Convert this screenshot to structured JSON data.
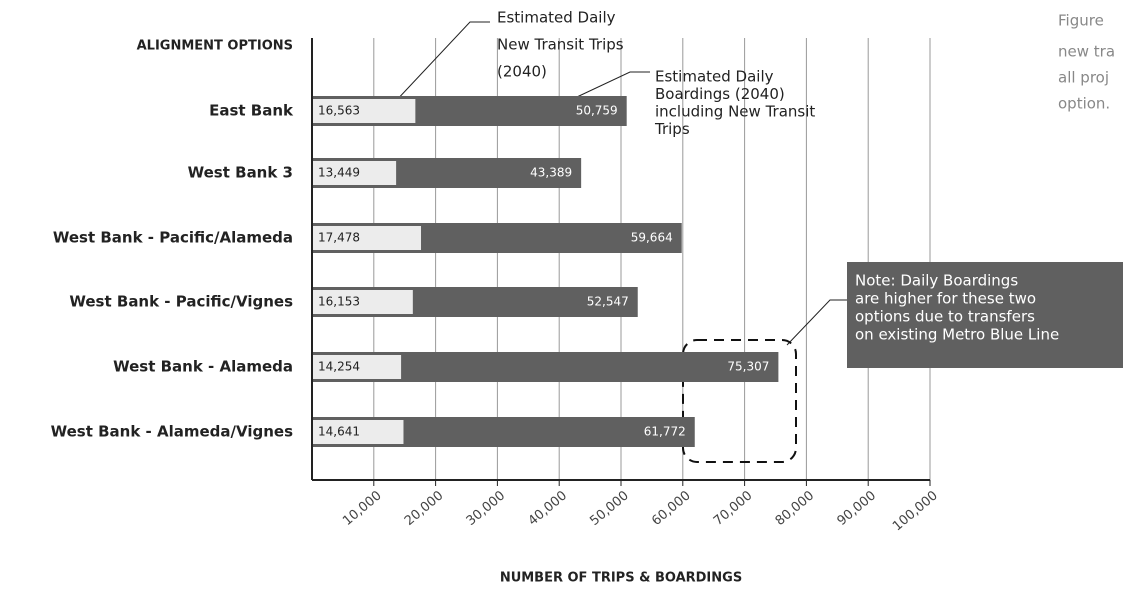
{
  "chart_data": {
    "type": "overlay_hbar",
    "title": "ALIGNMENT OPTIONS",
    "x_label": "NUMBER OF TRIPS & BOARDINGS",
    "categories": [
      "East Bank",
      "West Bank 3",
      "West Bank - Pacific/Alameda",
      "West Bank - Pacific/Vignes",
      "West Bank - Alameda",
      "West Bank - Alameda/Vignes"
    ],
    "series": [
      {
        "name": "Estimated Daily Boardings (2040) including New Transit Trips",
        "color": "#606060",
        "values": [
          50759,
          43389,
          59664,
          52547,
          75307,
          61772
        ],
        "value_labels": [
          "50,759",
          "43,389",
          "59,664",
          "52,547",
          "75,307",
          "61,772"
        ]
      },
      {
        "name": "Estimated Daily New Transit Trips (2040)",
        "color": "#ececec",
        "values": [
          16563,
          13449,
          17478,
          16153,
          14254,
          14641
        ],
        "value_labels": [
          "16,563",
          "13,449",
          "17,478",
          "16,153",
          "14,254",
          "14,641"
        ]
      }
    ],
    "xlim": [
      0,
      100000
    ],
    "xticks": [
      {
        "value": 10000,
        "label": "10,000"
      },
      {
        "value": 20000,
        "label": "20,000"
      },
      {
        "value": 30000,
        "label": "30,000"
      },
      {
        "value": 40000,
        "label": "40,000"
      },
      {
        "value": 50000,
        "label": "50,000"
      },
      {
        "value": 60000,
        "label": "60,000"
      },
      {
        "value": 70000,
        "label": "70,000"
      },
      {
        "value": 80000,
        "label": "80,000"
      },
      {
        "value": 90000,
        "label": "90,000"
      },
      {
        "value": 100000,
        "label": "100,000"
      }
    ],
    "grid": true,
    "annotations": [
      {
        "lines": [
          "Estimated Daily",
          "New Transit Trips",
          "(2040)"
        ]
      },
      {
        "lines": [
          "Estimated Daily",
          "Boardings (2040)",
          "including New Transit",
          "Trips"
        ]
      },
      {
        "lines": [
          "Note: Daily Boardings",
          "are higher for these two",
          "options due to transfers",
          "on existing Metro Blue Line"
        ]
      }
    ],
    "side_text": [
      "Figure",
      "new tra",
      "all proj",
      "option."
    ]
  }
}
